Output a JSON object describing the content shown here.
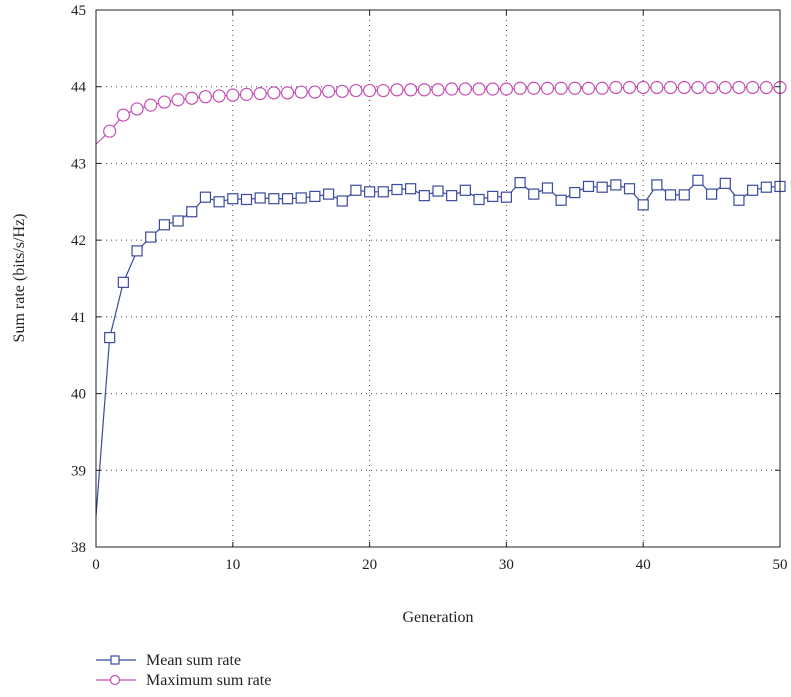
{
  "chart_data": {
    "type": "line",
    "xlabel": "Generation",
    "ylabel": "Sum rate (bits/s/Hz)",
    "xlim": [
      0,
      50
    ],
    "ylim": [
      38,
      45
    ],
    "xticks": [
      0,
      10,
      20,
      30,
      40,
      50
    ],
    "yticks": [
      38,
      39,
      40,
      41,
      42,
      43,
      44,
      45
    ],
    "grid": "dotted",
    "legend_position": "bottom-left",
    "series": [
      {
        "name": "Mean sum rate",
        "color": "#3b4a9c",
        "marker": "square",
        "x": [
          1,
          2,
          3,
          4,
          5,
          6,
          7,
          8,
          9,
          10,
          11,
          12,
          13,
          14,
          15,
          16,
          17,
          18,
          19,
          20,
          21,
          22,
          23,
          24,
          25,
          26,
          27,
          28,
          29,
          30,
          31,
          32,
          33,
          34,
          35,
          36,
          37,
          38,
          39,
          40,
          41,
          42,
          43,
          44,
          45,
          46,
          47,
          48,
          49,
          50
        ],
        "values": [
          40.73,
          41.45,
          41.86,
          42.04,
          42.2,
          42.25,
          42.37,
          42.56,
          42.5,
          42.54,
          42.53,
          42.55,
          42.54,
          42.54,
          42.55,
          42.57,
          42.6,
          42.51,
          42.65,
          42.63,
          42.63,
          42.66,
          42.67,
          42.58,
          42.64,
          42.58,
          42.65,
          42.53,
          42.57,
          42.56,
          42.75,
          42.6,
          42.68,
          42.52,
          42.62,
          42.7,
          42.69,
          42.72,
          42.67,
          42.46,
          42.72,
          42.59,
          42.59,
          42.78,
          42.6,
          42.74,
          42.52,
          42.65,
          42.69,
          42.7
        ],
        "curve_start": 38.4
      },
      {
        "name": "Maximum sum rate",
        "color": "#c64fb4",
        "marker": "circle",
        "x": [
          1,
          2,
          3,
          4,
          5,
          6,
          7,
          8,
          9,
          10,
          11,
          12,
          13,
          14,
          15,
          16,
          17,
          18,
          19,
          20,
          21,
          22,
          23,
          24,
          25,
          26,
          27,
          28,
          29,
          30,
          31,
          32,
          33,
          34,
          35,
          36,
          37,
          38,
          39,
          40,
          41,
          42,
          43,
          44,
          45,
          46,
          47,
          48,
          49,
          50
        ],
        "values": [
          43.42,
          43.63,
          43.71,
          43.76,
          43.8,
          43.83,
          43.85,
          43.87,
          43.88,
          43.89,
          43.9,
          43.91,
          43.92,
          43.92,
          43.93,
          43.93,
          43.94,
          43.94,
          43.95,
          43.95,
          43.95,
          43.96,
          43.96,
          43.96,
          43.96,
          43.97,
          43.97,
          43.97,
          43.97,
          43.97,
          43.98,
          43.98,
          43.98,
          43.98,
          43.98,
          43.98,
          43.98,
          43.99,
          43.99,
          43.99,
          43.99,
          43.99,
          43.99,
          43.99,
          43.99,
          43.99,
          43.99,
          43.99,
          43.99,
          43.99
        ],
        "curve_start": 43.25
      }
    ]
  }
}
